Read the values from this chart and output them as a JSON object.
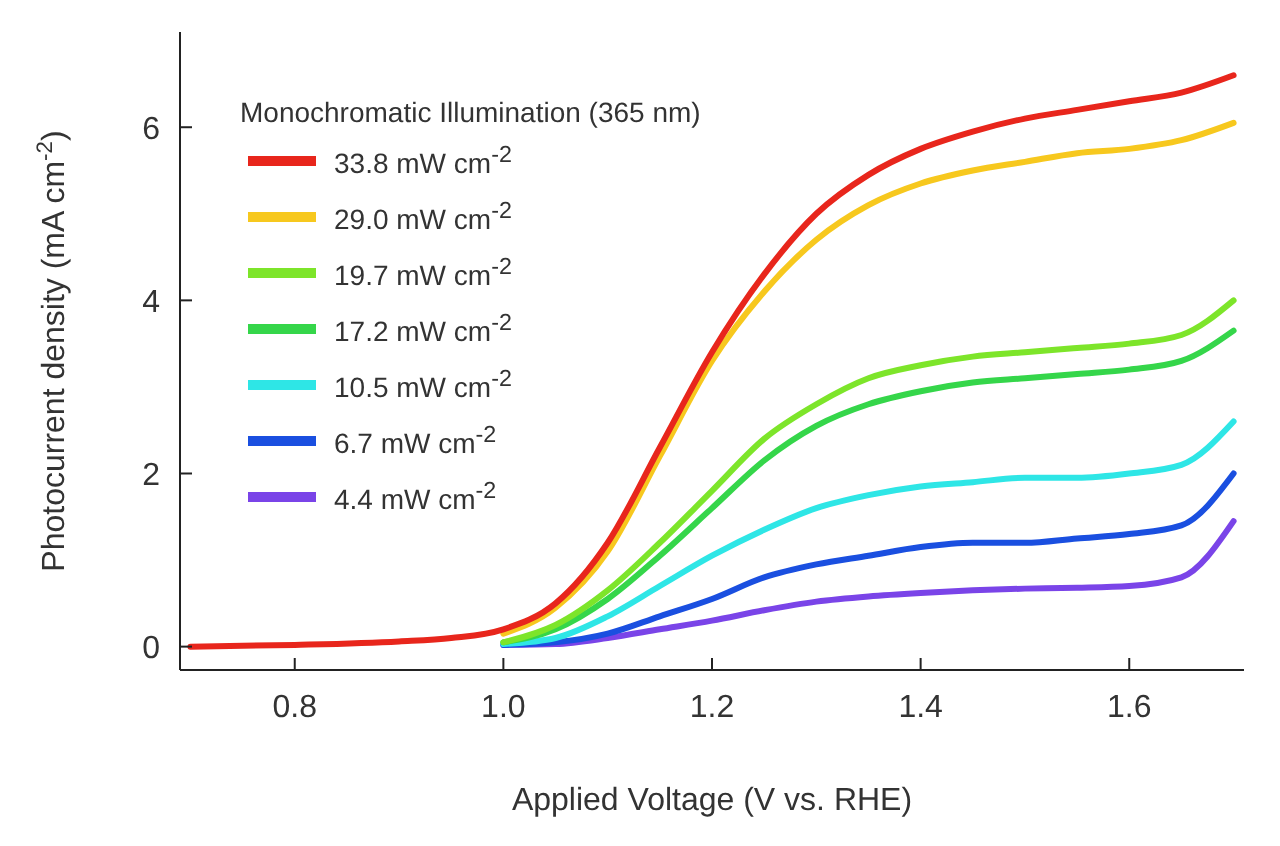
{
  "chart_data": {
    "type": "line",
    "xlabel": "Applied Voltage (V vs. RHE)",
    "ylabel": "Photocurrent density (mA cm$^{-2}$)",
    "legend_title": "Monochromatic Illumination (365 nm)",
    "legend": "top left",
    "grid": false,
    "marker": "none",
    "line_style": "solid",
    "x": [
      0.7,
      0.8,
      0.9,
      0.95,
      1.0,
      1.05,
      1.1,
      1.15,
      1.2,
      1.25,
      1.3,
      1.35,
      1.4,
      1.45,
      1.5,
      1.55,
      1.6,
      1.65,
      1.7
    ],
    "xlim": [
      0.69,
      1.71
    ],
    "xticks": [
      {
        "value": 0.8,
        "label": "0.8"
      },
      {
        "value": 1.0,
        "label": "1.0"
      },
      {
        "value": 1.2,
        "label": "1.2"
      },
      {
        "value": 1.4,
        "label": "1.4"
      },
      {
        "value": 1.6,
        "label": "1.6"
      }
    ],
    "ylim": [
      -0.27,
      7.1
    ],
    "yticks": [
      0,
      2,
      4,
      6
    ],
    "series": [
      {
        "name": "33.8 mW cm$^{-2}$",
        "color": "#e8261c",
        "values": [
          0,
          0.02,
          0.06,
          0.1,
          0.2,
          0.5,
          1.2,
          2.3,
          3.4,
          4.3,
          5.0,
          5.45,
          5.75,
          5.95,
          6.1,
          6.2,
          6.3,
          6.4,
          6.6
        ]
      },
      {
        "name": "29.0 mW cm$^{-2}$",
        "color": "#f7c81e",
        "values": [
          null,
          null,
          null,
          null,
          0.15,
          0.45,
          1.1,
          2.2,
          3.3,
          4.1,
          4.7,
          5.1,
          5.35,
          5.5,
          5.6,
          5.7,
          5.75,
          5.85,
          6.05
        ]
      },
      {
        "name": "19.7 mW cm$^{-2}$",
        "color": "#7de52a",
        "values": [
          null,
          null,
          null,
          null,
          0.05,
          0.25,
          0.65,
          1.2,
          1.8,
          2.4,
          2.8,
          3.1,
          3.25,
          3.35,
          3.4,
          3.45,
          3.5,
          3.6,
          4.0
        ]
      },
      {
        "name": "17.2 mW cm$^{-2}$",
        "color": "#35d64a",
        "values": [
          null,
          null,
          null,
          null,
          0.05,
          0.2,
          0.55,
          1.05,
          1.6,
          2.15,
          2.55,
          2.8,
          2.95,
          3.05,
          3.1,
          3.15,
          3.2,
          3.3,
          3.65
        ]
      },
      {
        "name": "10.5 mW cm$^{-2}$",
        "color": "#2ee6e6",
        "values": [
          null,
          null,
          null,
          null,
          0.03,
          0.1,
          0.35,
          0.7,
          1.05,
          1.35,
          1.6,
          1.75,
          1.85,
          1.9,
          1.95,
          1.95,
          2.0,
          2.1,
          2.6
        ]
      },
      {
        "name": "6.7 mW cm$^{-2}$",
        "color": "#1a4fe0",
        "values": [
          null,
          null,
          null,
          null,
          0.02,
          0.05,
          0.15,
          0.35,
          0.55,
          0.8,
          0.95,
          1.05,
          1.15,
          1.2,
          1.2,
          1.25,
          1.3,
          1.4,
          2.0
        ]
      },
      {
        "name": "4.4 mW cm$^{-2}$",
        "color": "#7a44e8",
        "values": [
          null,
          null,
          null,
          null,
          0.02,
          0.03,
          0.1,
          0.2,
          0.3,
          0.42,
          0.52,
          0.58,
          0.62,
          0.65,
          0.67,
          0.68,
          0.7,
          0.8,
          1.45
        ]
      }
    ]
  }
}
